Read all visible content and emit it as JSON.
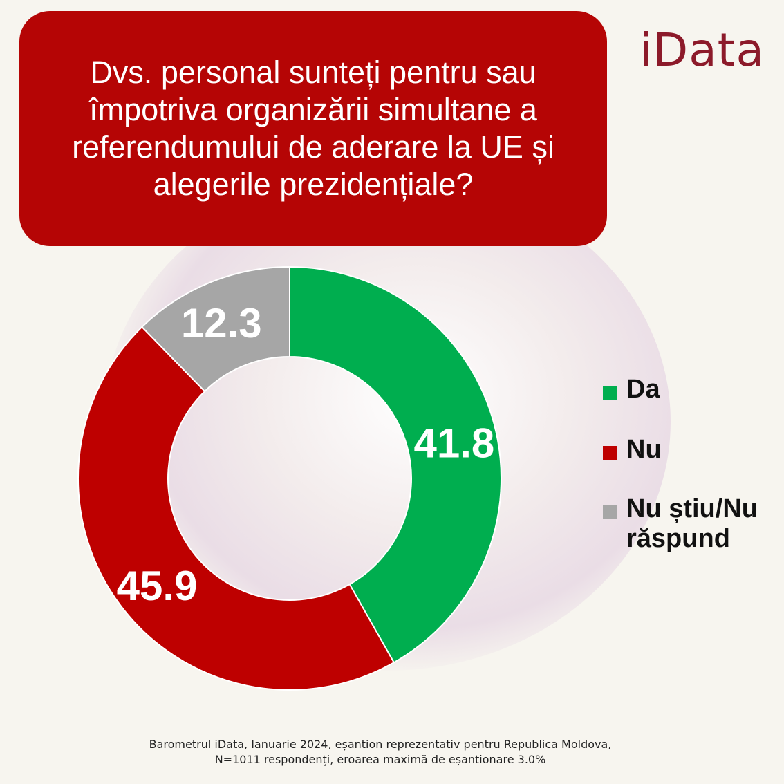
{
  "title": "Dvs. personal sunteți pentru sau împotriva organizării simultane a referendumului de aderare la UE și alegerile prezidențiale?",
  "logo": "iData",
  "chart_data": {
    "type": "pie",
    "variant": "donut",
    "slices": [
      {
        "name": "Da",
        "value": 41.8,
        "color": "#00ae4f"
      },
      {
        "name": "Nu",
        "value": 45.9,
        "color": "#be0000"
      },
      {
        "name": "Nu știu/Nu răspund",
        "value": 12.3,
        "color": "#a6a6a6"
      }
    ],
    "legend_position": "right"
  },
  "source": {
    "line1": "Barometrul iData, Ianuarie 2024, eșantion reprezentativ pentru Republica Moldova,",
    "line2": "N=1011 respondenți, eroarea maximă de eșantionare 3.0%"
  }
}
